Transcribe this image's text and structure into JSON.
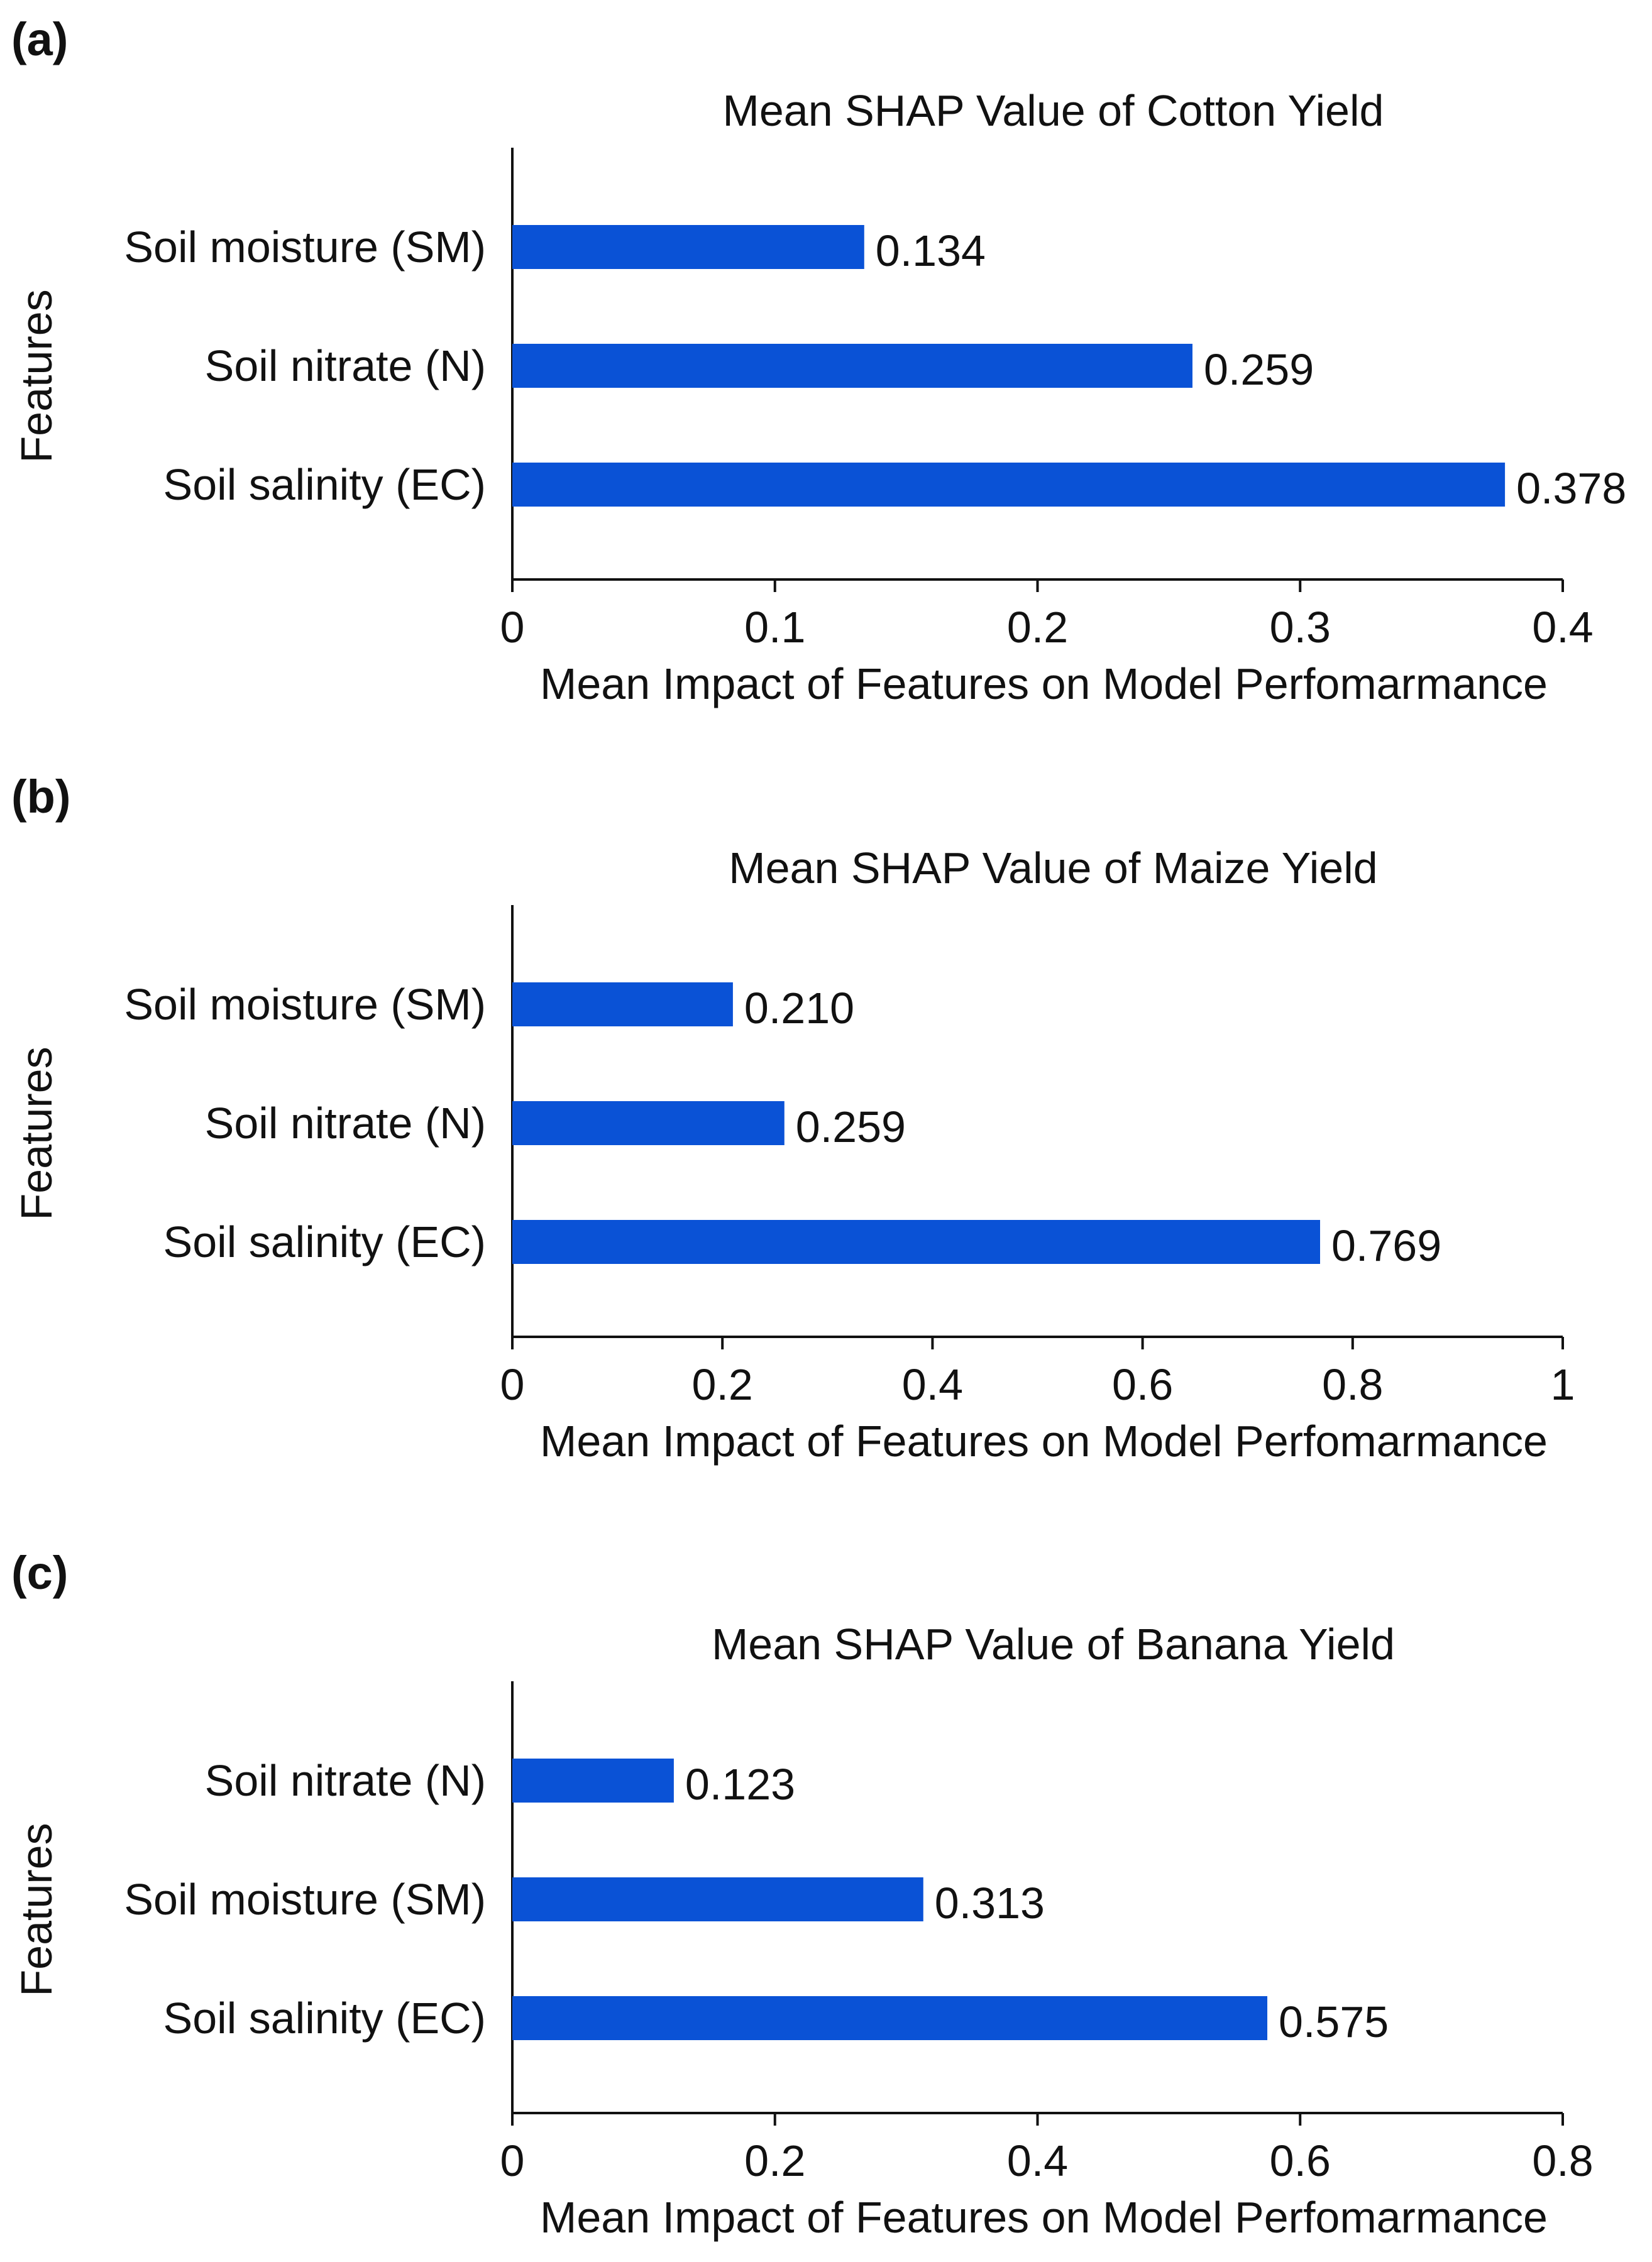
{
  "chart_data": [
    {
      "type": "bar",
      "orientation": "horizontal",
      "panel_label": "(a)",
      "title": "Mean SHAP Value of Cotton Yield",
      "xlabel": "Mean Impact of  Features on Model Perfomarmance",
      "ylabel": "Features",
      "categories": [
        "Soil moisture (SM)",
        "Soil nitrate (N)",
        "Soil salinity (EC)"
      ],
      "values": [
        0.134,
        0.259,
        0.378
      ],
      "value_labels": [
        "0.134",
        "0.259",
        "0.378"
      ],
      "xlim": [
        0,
        0.4
      ],
      "xticks": [
        0,
        0.1,
        0.2,
        0.3,
        0.4
      ],
      "xtick_labels": [
        "0",
        "0.1",
        "0.2",
        "0.3",
        "0.4"
      ],
      "grid": false,
      "bar_color": "#0a52d6"
    },
    {
      "type": "bar",
      "orientation": "horizontal",
      "panel_label": "(b)",
      "title": "Mean SHAP Value of Maize Yield",
      "xlabel": "Mean Impact of  Features on Model Perfomarmance",
      "ylabel": "Features",
      "categories": [
        "Soil moisture (SM)",
        "Soil nitrate (N)",
        "Soil salinity (EC)"
      ],
      "values": [
        0.21,
        0.259,
        0.769
      ],
      "value_labels": [
        "0.210",
        "0.259",
        "0.769"
      ],
      "xlim": [
        0,
        1
      ],
      "xticks": [
        0,
        0.2,
        0.4,
        0.6,
        0.8,
        1
      ],
      "xtick_labels": [
        "0",
        "0.2",
        "0.4",
        "0.6",
        "0.8",
        "1"
      ],
      "grid": false,
      "bar_color": "#0a52d6"
    },
    {
      "type": "bar",
      "orientation": "horizontal",
      "panel_label": "(c)",
      "title": "Mean SHAP Value of Banana Yield",
      "xlabel": "Mean Impact of  Features on Model Perfomarmance",
      "ylabel": "Features",
      "categories": [
        "Soil nitrate (N)",
        "Soil moisture (SM)",
        "Soil salinity (EC)"
      ],
      "values": [
        0.123,
        0.313,
        0.575
      ],
      "value_labels": [
        "0.123",
        "0.313",
        "0.575"
      ],
      "xlim": [
        0,
        0.8
      ],
      "xticks": [
        0,
        0.2,
        0.4,
        0.6,
        0.8
      ],
      "xtick_labels": [
        "0",
        "0.2",
        "0.4",
        "0.6",
        "0.8"
      ],
      "grid": false,
      "bar_color": "#0a52d6"
    }
  ]
}
